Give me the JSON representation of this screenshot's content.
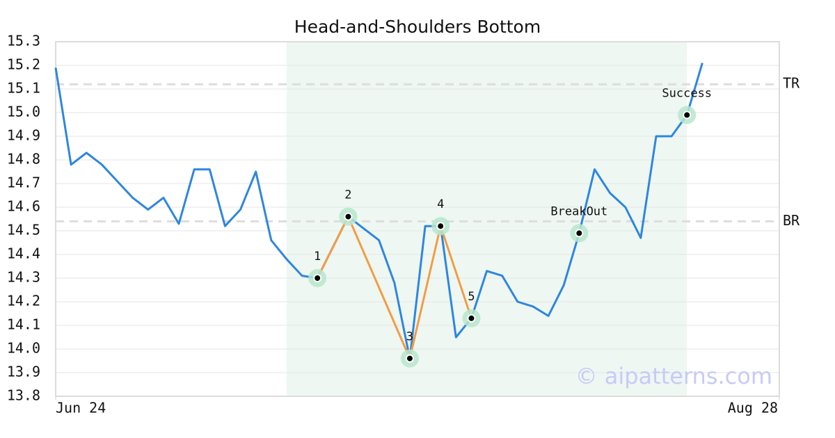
{
  "chart_data": {
    "type": "line",
    "title": "Head-and-Shoulders Bottom",
    "x": [
      0,
      1,
      2,
      3,
      4,
      5,
      6,
      7,
      8,
      9,
      10,
      11,
      12,
      13,
      14,
      15,
      16,
      17,
      18,
      19,
      20,
      21,
      22,
      23,
      24,
      25,
      26,
      27,
      28,
      29,
      30,
      31,
      32,
      33,
      34,
      35,
      36,
      37,
      38,
      39,
      40,
      41,
      42
    ],
    "values": [
      15.19,
      14.78,
      14.83,
      14.78,
      14.71,
      14.64,
      14.59,
      14.64,
      14.53,
      14.76,
      14.76,
      14.52,
      14.59,
      14.75,
      14.46,
      14.38,
      14.31,
      14.3,
      14.43,
      14.56,
      14.51,
      14.46,
      14.28,
      13.96,
      14.52,
      14.52,
      14.05,
      14.13,
      14.33,
      14.31,
      14.2,
      14.18,
      14.14,
      14.27,
      14.49,
      14.76,
      14.66,
      14.6,
      14.47,
      14.9,
      14.9,
      14.99,
      15.21
    ],
    "color": "#2e86de",
    "xlim": [
      0,
      47
    ],
    "xticks": [
      {
        "value": 0,
        "label": "Jun 24"
      },
      {
        "value": 47,
        "label": "Aug 28"
      }
    ],
    "ylim": [
      13.8,
      15.3
    ],
    "yticks": [
      13.8,
      13.9,
      {
        "value": 14,
        "label": "14.0"
      },
      14.1,
      14.2,
      14.3,
      14.4,
      14.5,
      14.6,
      14.7,
      14.8,
      14.9,
      {
        "value": 15,
        "label": "15.0"
      },
      15.1,
      15.2,
      15.3
    ],
    "grid": true,
    "highlight": {
      "x": [
        15,
        41
      ],
      "color": "#eef7f2"
    },
    "levels": [
      {
        "label": "TR",
        "value": 15.12
      },
      {
        "label": "BR",
        "value": 14.54
      }
    ],
    "pattern": {
      "color": "#f39c44",
      "points": [
        {
          "label": "1",
          "x": 17,
          "y": 14.3
        },
        {
          "label": "2",
          "x": 19,
          "y": 14.56
        },
        {
          "label": "3",
          "x": 23,
          "y": 13.96
        },
        {
          "label": "4",
          "x": 25,
          "y": 14.52
        },
        {
          "label": "5",
          "x": 27,
          "y": 14.13
        }
      ]
    },
    "annotations": [
      {
        "label": "BreakOut",
        "x": 34,
        "y": 14.49
      },
      {
        "label": "Success",
        "x": 41,
        "y": 14.99
      }
    ],
    "watermark": "© aipatterns.com"
  }
}
